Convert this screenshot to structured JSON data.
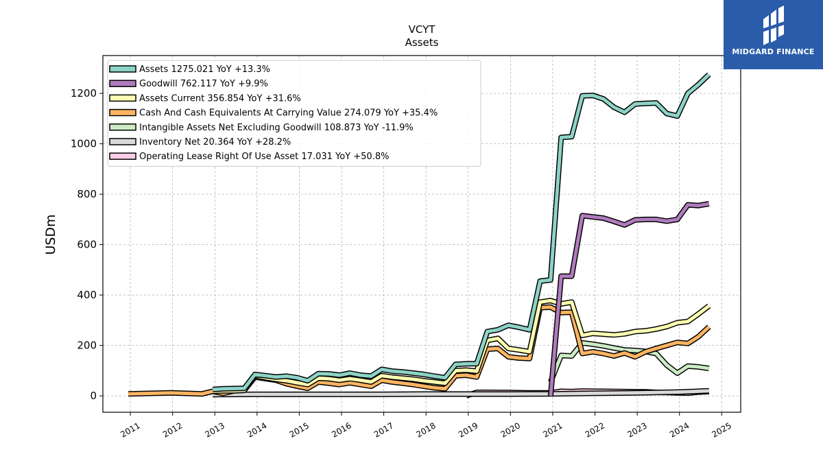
{
  "chart_data": {
    "type": "line",
    "title": "VCYT",
    "subtitle": "Assets",
    "ylabel": "USDm",
    "xlabel": "",
    "xlim": [
      2010.35,
      2025.45
    ],
    "ylim": [
      -65,
      1350
    ],
    "x_ticks": [
      "2011",
      "2012",
      "2013",
      "2014",
      "2015",
      "2016",
      "2017",
      "2018",
      "2019",
      "2020",
      "2021",
      "2022",
      "2023",
      "2024",
      "2025"
    ],
    "y_ticks": [
      0,
      200,
      400,
      600,
      800,
      1000,
      1200
    ],
    "grid": true,
    "legend_position": "top-left",
    "series": [
      {
        "name": "Assets  1275.021 YoY +13.3%",
        "color": "#8dd3c7",
        "points": [
          [
            2012.95,
            25
          ],
          [
            2013.2,
            28
          ],
          [
            2013.45,
            29
          ],
          [
            2013.7,
            30
          ],
          [
            2013.95,
            85
          ],
          [
            2014.2,
            80
          ],
          [
            2014.45,
            75
          ],
          [
            2014.7,
            78
          ],
          [
            2014.95,
            72
          ],
          [
            2015.2,
            60
          ],
          [
            2015.45,
            88
          ],
          [
            2015.7,
            87
          ],
          [
            2015.95,
            82
          ],
          [
            2016.2,
            90
          ],
          [
            2016.45,
            82
          ],
          [
            2016.7,
            78
          ],
          [
            2016.95,
            105
          ],
          [
            2017.2,
            98
          ],
          [
            2017.45,
            95
          ],
          [
            2017.7,
            90
          ],
          [
            2017.95,
            85
          ],
          [
            2018.2,
            78
          ],
          [
            2018.45,
            72
          ],
          [
            2018.7,
            125
          ],
          [
            2018.95,
            127
          ],
          [
            2019.2,
            128
          ],
          [
            2019.45,
            255
          ],
          [
            2019.7,
            262
          ],
          [
            2019.95,
            280
          ],
          [
            2020.2,
            272
          ],
          [
            2020.45,
            262
          ],
          [
            2020.7,
            455
          ],
          [
            2020.95,
            460
          ],
          [
            2021.2,
            1025
          ],
          [
            2021.45,
            1028
          ],
          [
            2021.7,
            1190
          ],
          [
            2021.95,
            1192
          ],
          [
            2022.2,
            1178
          ],
          [
            2022.45,
            1145
          ],
          [
            2022.7,
            1125
          ],
          [
            2022.95,
            1158
          ],
          [
            2023.2,
            1160
          ],
          [
            2023.45,
            1162
          ],
          [
            2023.7,
            1120
          ],
          [
            2023.95,
            1110
          ],
          [
            2024.2,
            1200
          ],
          [
            2024.45,
            1235
          ],
          [
            2024.7,
            1275
          ]
        ]
      },
      {
        "name": "Goodwill  762.117 YoY +9.9%",
        "color": "#b07bbd",
        "points": [
          [
            2020.95,
            0
          ],
          [
            2021.2,
            475
          ],
          [
            2021.45,
            475
          ],
          [
            2021.7,
            715
          ],
          [
            2021.95,
            710
          ],
          [
            2022.2,
            705
          ],
          [
            2022.45,
            692
          ],
          [
            2022.7,
            678
          ],
          [
            2022.95,
            698
          ],
          [
            2023.2,
            700
          ],
          [
            2023.45,
            700
          ],
          [
            2023.7,
            693
          ],
          [
            2023.95,
            700
          ],
          [
            2024.2,
            758
          ],
          [
            2024.45,
            755
          ],
          [
            2024.7,
            762
          ]
        ]
      },
      {
        "name": "Assets Current  356.854 YoY +31.6%",
        "color": "#ffffb3",
        "points": [
          [
            2012.95,
            18
          ],
          [
            2013.2,
            20
          ],
          [
            2013.45,
            20
          ],
          [
            2013.7,
            22
          ],
          [
            2013.95,
            80
          ],
          [
            2014.2,
            72
          ],
          [
            2014.45,
            65
          ],
          [
            2014.7,
            60
          ],
          [
            2014.95,
            52
          ],
          [
            2015.2,
            45
          ],
          [
            2015.45,
            70
          ],
          [
            2015.7,
            68
          ],
          [
            2015.95,
            62
          ],
          [
            2016.2,
            68
          ],
          [
            2016.45,
            62
          ],
          [
            2016.7,
            55
          ],
          [
            2016.95,
            80
          ],
          [
            2017.2,
            74
          ],
          [
            2017.45,
            70
          ],
          [
            2017.7,
            66
          ],
          [
            2017.95,
            60
          ],
          [
            2018.2,
            55
          ],
          [
            2018.45,
            50
          ],
          [
            2018.7,
            100
          ],
          [
            2018.95,
            102
          ],
          [
            2019.2,
            98
          ],
          [
            2019.45,
            220
          ],
          [
            2019.7,
            228
          ],
          [
            2019.95,
            188
          ],
          [
            2020.2,
            182
          ],
          [
            2020.45,
            175
          ],
          [
            2020.7,
            372
          ],
          [
            2020.95,
            378
          ],
          [
            2021.2,
            365
          ],
          [
            2021.45,
            372
          ],
          [
            2021.7,
            240
          ],
          [
            2021.95,
            248
          ],
          [
            2022.2,
            245
          ],
          [
            2022.45,
            242
          ],
          [
            2022.7,
            246
          ],
          [
            2022.95,
            255
          ],
          [
            2023.2,
            258
          ],
          [
            2023.45,
            265
          ],
          [
            2023.7,
            275
          ],
          [
            2023.95,
            290
          ],
          [
            2024.2,
            295
          ],
          [
            2024.45,
            325
          ],
          [
            2024.7,
            357
          ]
        ]
      },
      {
        "name": "Cash And Cash Equivalents At Carrying Value  274.079 YoY +35.4%",
        "color": "#fdb462",
        "points": [
          [
            2010.95,
            8
          ],
          [
            2011.95,
            12
          ],
          [
            2012.7,
            8
          ],
          [
            2012.95,
            18
          ],
          [
            2013.2,
            10
          ],
          [
            2013.45,
            20
          ],
          [
            2013.7,
            22
          ],
          [
            2013.95,
            75
          ],
          [
            2014.2,
            68
          ],
          [
            2014.45,
            62
          ],
          [
            2014.7,
            48
          ],
          [
            2014.95,
            38
          ],
          [
            2015.2,
            30
          ],
          [
            2015.45,
            55
          ],
          [
            2015.7,
            50
          ],
          [
            2015.95,
            45
          ],
          [
            2016.2,
            52
          ],
          [
            2016.45,
            45
          ],
          [
            2016.7,
            38
          ],
          [
            2016.95,
            62
          ],
          [
            2017.2,
            55
          ],
          [
            2017.45,
            50
          ],
          [
            2017.7,
            45
          ],
          [
            2017.95,
            38
          ],
          [
            2018.2,
            32
          ],
          [
            2018.45,
            28
          ],
          [
            2018.7,
            80
          ],
          [
            2018.95,
            82
          ],
          [
            2019.2,
            75
          ],
          [
            2019.45,
            185
          ],
          [
            2019.7,
            188
          ],
          [
            2019.95,
            155
          ],
          [
            2020.2,
            150
          ],
          [
            2020.45,
            148
          ],
          [
            2020.7,
            350
          ],
          [
            2020.95,
            352
          ],
          [
            2021.2,
            330
          ],
          [
            2021.45,
            332
          ],
          [
            2021.7,
            168
          ],
          [
            2021.95,
            175
          ],
          [
            2022.2,
            168
          ],
          [
            2022.45,
            158
          ],
          [
            2022.7,
            170
          ],
          [
            2022.95,
            155
          ],
          [
            2023.2,
            175
          ],
          [
            2023.45,
            188
          ],
          [
            2023.7,
            200
          ],
          [
            2023.95,
            212
          ],
          [
            2024.2,
            208
          ],
          [
            2024.45,
            235
          ],
          [
            2024.7,
            274
          ]
        ]
      },
      {
        "name": "Intangible Assets Net Excluding Goodwill  108.873 YoY -11.9%",
        "color": "#ccebc5",
        "points": [
          [
            2020.95,
            55
          ],
          [
            2021.2,
            160
          ],
          [
            2021.45,
            158
          ],
          [
            2021.7,
            210
          ],
          [
            2021.95,
            205
          ],
          [
            2022.2,
            198
          ],
          [
            2022.45,
            190
          ],
          [
            2022.7,
            182
          ],
          [
            2022.95,
            180
          ],
          [
            2023.2,
            176
          ],
          [
            2023.45,
            168
          ],
          [
            2023.7,
            122
          ],
          [
            2023.95,
            90
          ],
          [
            2024.2,
            118
          ],
          [
            2024.45,
            115
          ],
          [
            2024.7,
            109
          ]
        ]
      },
      {
        "name": "Inventory Net  20.364 YoY +28.2%",
        "color": "#d9d9d9",
        "points": [
          [
            2012.95,
            5
          ],
          [
            2013.95,
            6
          ],
          [
            2014.95,
            6
          ],
          [
            2015.95,
            6
          ],
          [
            2016.95,
            6
          ],
          [
            2017.95,
            7
          ],
          [
            2018.95,
            7
          ],
          [
            2019.95,
            7
          ],
          [
            2020.95,
            8
          ],
          [
            2021.95,
            10
          ],
          [
            2022.95,
            12
          ],
          [
            2023.95,
            15
          ],
          [
            2024.7,
            20
          ]
        ]
      },
      {
        "name": "Operating Lease Right Of Use Asset  17.031 YoY +50.8%",
        "color": "#fccde5",
        "points": [
          [
            2018.95,
            0
          ],
          [
            2019.2,
            14
          ],
          [
            2019.45,
            14
          ],
          [
            2019.95,
            13
          ],
          [
            2020.45,
            12
          ],
          [
            2020.95,
            12
          ],
          [
            2021.2,
            18
          ],
          [
            2021.45,
            17
          ],
          [
            2021.7,
            19
          ],
          [
            2022.2,
            18
          ],
          [
            2022.7,
            17
          ],
          [
            2023.2,
            16
          ],
          [
            2023.45,
            14
          ],
          [
            2023.7,
            13
          ],
          [
            2023.95,
            12
          ],
          [
            2024.2,
            11
          ],
          [
            2024.45,
            15
          ],
          [
            2024.7,
            17
          ]
        ]
      }
    ]
  },
  "brand": {
    "name": "MIDGARD FINANCE",
    "background": "#2a5caa"
  }
}
